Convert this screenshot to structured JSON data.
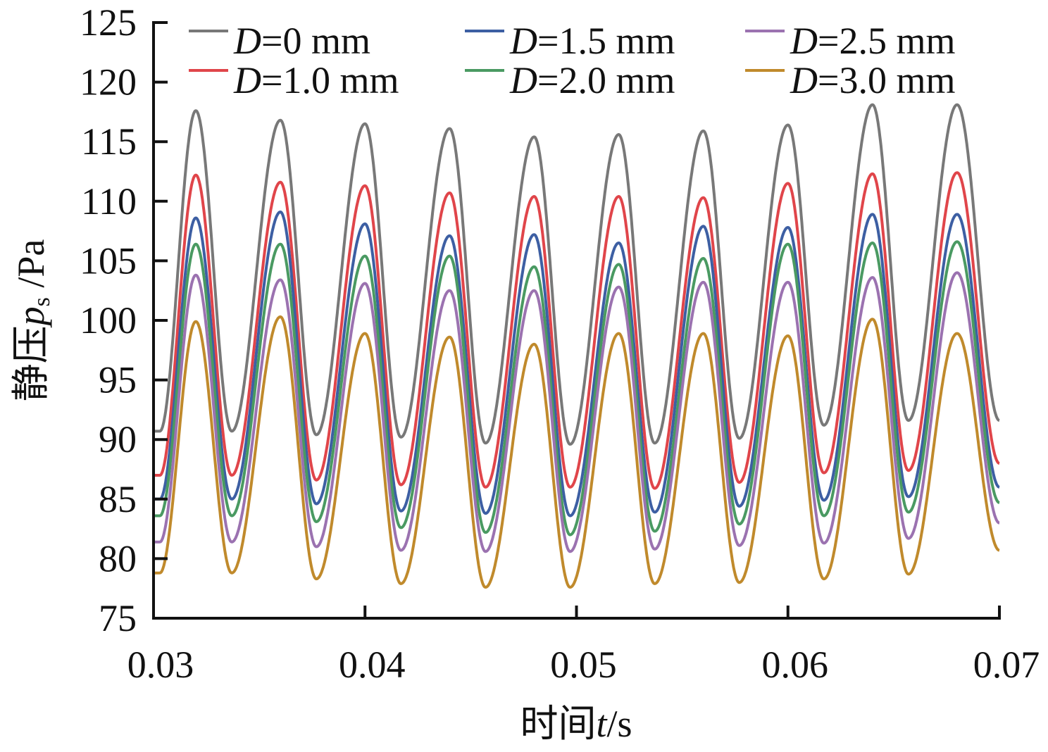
{
  "chart_data": {
    "type": "line",
    "xlabel": "时间t/s",
    "xlabel_parts": {
      "prefix": "时间",
      "var": "t",
      "unit": "/s"
    },
    "ylabel": "静压p_s /Pa",
    "ylabel_parts": {
      "prefix": "静压",
      "var": "p",
      "sub": "s",
      "unit": " /Pa"
    },
    "xlim": [
      0.03,
      0.07
    ],
    "ylim": [
      75,
      125
    ],
    "x_ticks": [
      0.03,
      0.04,
      0.05,
      0.06,
      0.07
    ],
    "x_tick_labels": [
      "0.03",
      "0.04",
      "0.05",
      "0.06",
      "0.07"
    ],
    "y_ticks": [
      75,
      80,
      85,
      90,
      95,
      100,
      105,
      110,
      115,
      120,
      125
    ],
    "y_tick_labels": [
      "75",
      "80",
      "85",
      "90",
      "95",
      "100",
      "105",
      "110",
      "115",
      "120",
      "125"
    ],
    "grid": false,
    "legend_position": "top",
    "waveform_period": 0.004,
    "peak_times": [
      0.032,
      0.036,
      0.04,
      0.044,
      0.048,
      0.052,
      0.056,
      0.06,
      0.064,
      0.068
    ],
    "trough_times": [
      0.0337,
      0.0377,
      0.0417,
      0.0457,
      0.0497,
      0.0537,
      0.0577,
      0.0617,
      0.0657
    ],
    "series": [
      {
        "name": "D=0 mm",
        "label_var": "D",
        "label_val": "=0 mm",
        "color": "#787878",
        "start": 91.6,
        "peaks": [
          117.6,
          116.8,
          116.5,
          116.1,
          115.4,
          115.6,
          115.9,
          116.4,
          118.1,
          118.1
        ],
        "troughs": [
          90.7,
          90.4,
          90.2,
          89.7,
          89.6,
          89.7,
          90.1,
          91.2,
          91.6
        ],
        "end": 91.6
      },
      {
        "name": "D=1.0 mm",
        "label_var": "D",
        "label_val": "=1.0 mm",
        "color": "#e0454a",
        "start": 87.8,
        "peaks": [
          112.2,
          111.6,
          111.3,
          110.7,
          110.4,
          110.4,
          110.3,
          111.5,
          112.3,
          112.4
        ],
        "troughs": [
          87.0,
          86.6,
          86.2,
          86.0,
          86.0,
          85.9,
          86.4,
          87.2,
          87.4
        ],
        "end": 88.0
      },
      {
        "name": "D=1.5 mm",
        "label_var": "D",
        "label_val": "=1.5 mm",
        "color": "#3d5fa3",
        "start": 85.8,
        "peaks": [
          108.6,
          109.1,
          108.1,
          107.1,
          107.2,
          106.5,
          107.9,
          107.8,
          108.9,
          108.9
        ],
        "troughs": [
          85.0,
          84.6,
          84.0,
          83.8,
          83.6,
          83.9,
          84.4,
          84.9,
          85.2
        ],
        "end": 86.0
      },
      {
        "name": "D=2.0 mm",
        "label_var": "D",
        "label_val": "=2.0 mm",
        "color": "#4a9a62",
        "start": 84.4,
        "peaks": [
          106.4,
          106.4,
          105.4,
          105.4,
          104.5,
          104.7,
          105.2,
          106.4,
          106.5,
          106.6
        ],
        "troughs": [
          83.6,
          83.1,
          82.6,
          82.2,
          82.0,
          82.3,
          82.9,
          83.6,
          83.9
        ],
        "end": 84.7
      },
      {
        "name": "D=2.5 mm",
        "label_var": "D",
        "label_val": "=2.5 mm",
        "color": "#9b72b0",
        "start": 82.9,
        "peaks": [
          103.8,
          103.4,
          103.1,
          102.5,
          102.5,
          102.8,
          103.2,
          103.2,
          103.6,
          104.0
        ],
        "troughs": [
          81.4,
          81.0,
          80.7,
          80.6,
          80.6,
          80.8,
          81.1,
          81.3,
          81.7
        ],
        "end": 83.0
      },
      {
        "name": "D=3.0 mm",
        "label_var": "D",
        "label_val": "=3.0 mm",
        "color": "#c08a2c",
        "start": 80.6,
        "peaks": [
          99.9,
          100.3,
          98.9,
          98.6,
          98.0,
          98.9,
          98.9,
          98.7,
          100.1,
          98.9
        ],
        "troughs": [
          78.8,
          78.3,
          77.9,
          77.6,
          77.6,
          77.9,
          78.0,
          78.3,
          78.7
        ],
        "end": 80.7
      }
    ]
  }
}
